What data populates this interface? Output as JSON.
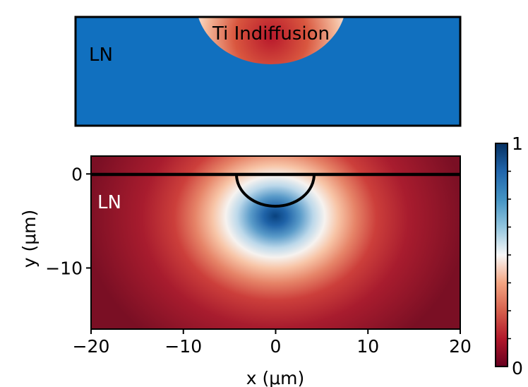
{
  "colors": {
    "ln_substrate": "#1170bf",
    "cmap_low": "#67001f",
    "cmap_mid": "#f7f7f7",
    "cmap_high": "#053061",
    "outline": "#000000"
  },
  "schematic": {
    "substrate_label": "LN",
    "region_label": "Ti Indiffusion"
  },
  "chart_data": {
    "type": "heatmap",
    "title": "",
    "subtitle": "",
    "xlabel": "x (μm)",
    "ylabel": "y (μm)",
    "xlim": [
      -20,
      20
    ],
    "ylim": [
      -16.5,
      1.9
    ],
    "x_ticks": [
      -20,
      -10,
      0,
      10,
      20
    ],
    "x_tick_labels": [
      "−20",
      "−10",
      "0",
      "10",
      "20"
    ],
    "y_ticks": [
      0,
      -10
    ],
    "y_tick_labels": [
      "0",
      "−10"
    ],
    "colorbar": {
      "min": 0,
      "max": 1,
      "min_label": "0",
      "max_label": "1",
      "colormap": "RdBu"
    },
    "annotation": "LN",
    "field_peak": {
      "x": 0,
      "y": -4.8,
      "value": 1.0
    },
    "surface_y": 0,
    "ti_region": {
      "center_x": 0,
      "center_y": 0,
      "radius": 4.2
    }
  }
}
